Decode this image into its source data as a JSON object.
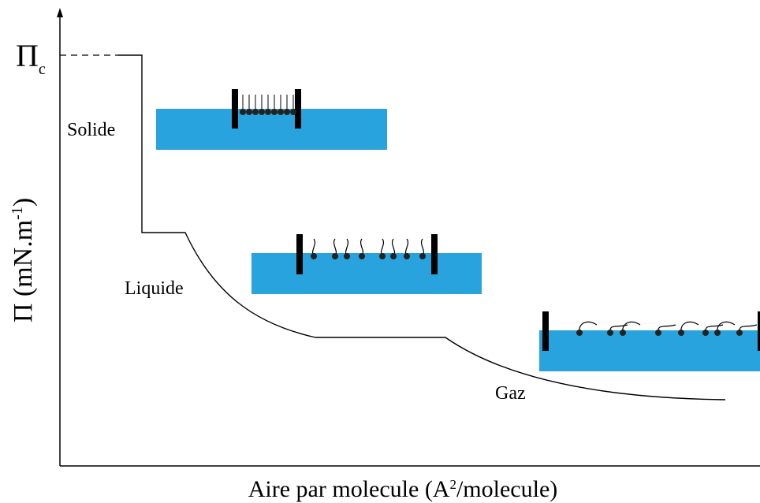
{
  "y_axis_label": {
    "main": "Π (mN.m",
    "superscript": "-1",
    "end": ")"
  },
  "x_axis_label": {
    "main": "Aire par molecule (A",
    "superscript": "2",
    "end": "/molecule)"
  },
  "critical_pressure": {
    "symbol": "Π",
    "subscript": "c"
  },
  "phases": [
    "Solide",
    "Liquide",
    "Gaz"
  ]
}
